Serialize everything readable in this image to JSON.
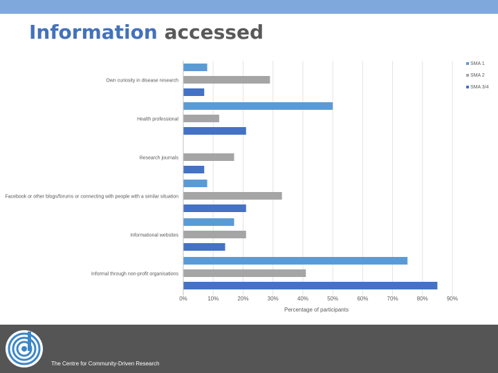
{
  "slide": {
    "title_part1": "Information",
    "title_part2": "accessed",
    "footer_text": "The Centre for Community-Driven Research"
  },
  "colors": {
    "top_band": "#7fa9dc",
    "title_accent": "#4472b9",
    "title_dark": "#595959",
    "footer_bg": "#555555",
    "series": [
      "#5b9bd5",
      "#a5a5a5",
      "#4472c4"
    ]
  },
  "chart_data": {
    "type": "bar",
    "orientation": "horizontal",
    "categories": [
      "Own curiosity in disease research",
      "Health professional",
      "Research journals",
      "Facebook or other blogs/forums or connecting with people with a similar situation",
      "Informational websites",
      "Informal through non-profit organisations"
    ],
    "series": [
      {
        "name": "SMA 1",
        "values": [
          8,
          50,
          0,
          8,
          17,
          75
        ]
      },
      {
        "name": "SMA 2",
        "values": [
          29,
          12,
          17,
          33,
          21,
          41
        ]
      },
      {
        "name": "SMA 3/4",
        "values": [
          7,
          21,
          7,
          21,
          14,
          85
        ]
      }
    ],
    "xlim": [
      0,
      90
    ],
    "xticks": [
      "0%",
      "10%",
      "20%",
      "30%",
      "40%",
      "50%",
      "60%",
      "70%",
      "80%",
      "90%"
    ],
    "xlabel": "Percentage of participants",
    "legend_position": "top-right",
    "grid": true
  }
}
